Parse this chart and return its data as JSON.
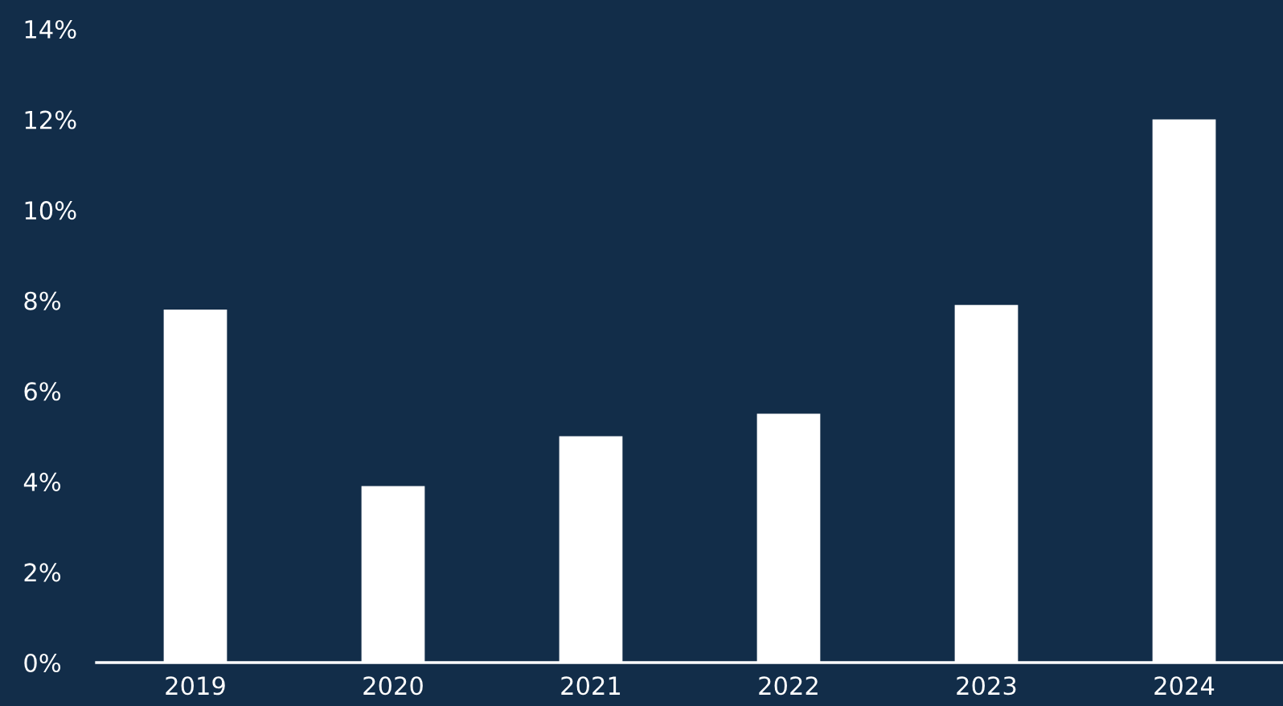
{
  "chart_data": {
    "type": "bar",
    "categories": [
      "2019",
      "2020",
      "2021",
      "2022",
      "2023",
      "2024"
    ],
    "values": [
      7.8,
      3.9,
      5.0,
      5.5,
      7.9,
      12.0
    ],
    "color": "#ffffff",
    "ylim": [
      0,
      14
    ],
    "yticks": [
      {
        "value": 0,
        "label": "0%"
      },
      {
        "value": 2,
        "label": "2%"
      },
      {
        "value": 4,
        "label": "4%"
      },
      {
        "value": 6,
        "label": "6%"
      },
      {
        "value": 8,
        "label": "8%"
      },
      {
        "value": 10,
        "label": "10%"
      },
      {
        "value": 12,
        "label": "12%"
      },
      {
        "value": 14,
        "label": "14%"
      }
    ],
    "grid": false
  }
}
